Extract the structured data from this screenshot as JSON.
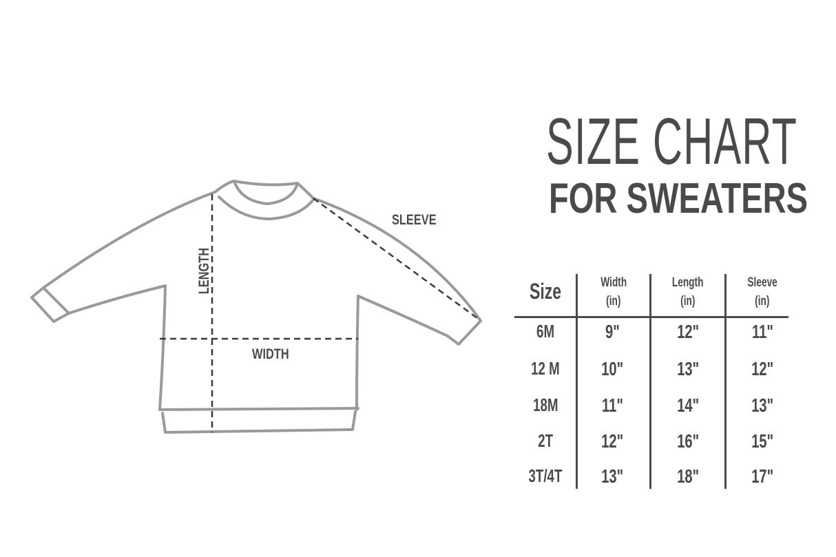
{
  "title": {
    "line1": "SIZE CHART",
    "line2": "FOR SWEATERS"
  },
  "diagram": {
    "labels": {
      "length": "LENGTH",
      "width": "WIDTH",
      "sleeve": "SLEEVE"
    },
    "outline_color": "#9a9a9a",
    "dash_color": "#3a3a3a"
  },
  "table": {
    "headers": [
      {
        "line1": "Size",
        "line2": ""
      },
      {
        "line1": "Width",
        "line2": "(in)"
      },
      {
        "line1": "Length",
        "line2": "(in)"
      },
      {
        "line1": "Sleeve",
        "line2": "(in)"
      }
    ],
    "rows": [
      [
        "6M",
        "9\"",
        "12\"",
        "11\""
      ],
      [
        "12 M",
        "10\"",
        "13\"",
        "12\""
      ],
      [
        "18M",
        "11\"",
        "14\"",
        "13\""
      ],
      [
        "2T",
        "12\"",
        "16\"",
        "15\""
      ],
      [
        "3T/4T",
        "13\"",
        "18\"",
        "17\""
      ]
    ]
  },
  "text_color": "#4a4a4a"
}
